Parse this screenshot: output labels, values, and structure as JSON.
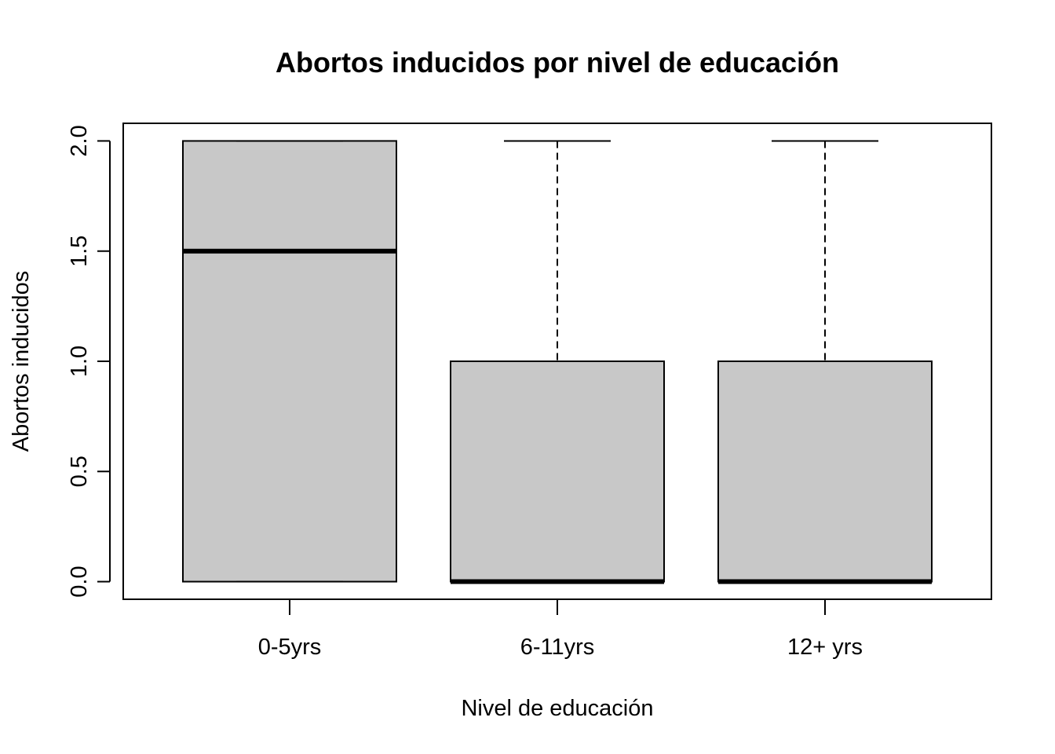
{
  "chart_data": {
    "type": "boxplot",
    "title": "Abortos inducidos por nivel de educación",
    "xlabel": "Nivel de educación",
    "ylabel": "Abortos inducidos",
    "ylim": [
      -0.08,
      2.08
    ],
    "yticks": [
      0.0,
      0.5,
      1.0,
      1.5,
      2.0
    ],
    "ytick_labels": [
      "0.0",
      "0.5",
      "1.0",
      "1.5",
      "2.0"
    ],
    "categories": [
      "0-5yrs",
      "6-11yrs",
      "12+ yrs"
    ],
    "boxes": [
      {
        "category": "0-5yrs",
        "min": 0,
        "q1": 0,
        "median": 1.5,
        "q3": 2,
        "max": 2
      },
      {
        "category": "6-11yrs",
        "min": 0,
        "q1": 0,
        "median": 0,
        "q3": 1,
        "max": 2
      },
      {
        "category": "12+ yrs",
        "min": 0,
        "q1": 0,
        "median": 0,
        "q3": 1,
        "max": 2
      }
    ],
    "box_fill": "#c8c8c8",
    "grid": false
  }
}
